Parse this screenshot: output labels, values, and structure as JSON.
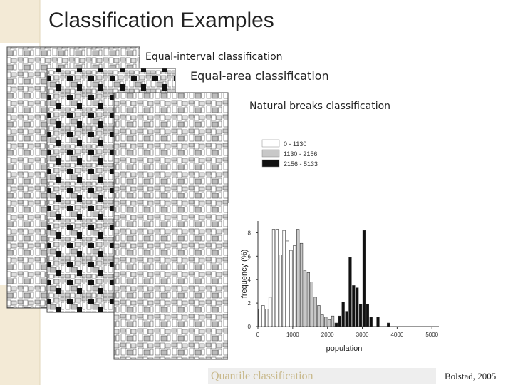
{
  "title": "Classification Examples",
  "maps": [
    "Equal-interval classification",
    "Equal-area classification",
    "Natural breaks classification",
    "Quantile classification"
  ],
  "credit": "Bolstad, 2005",
  "chart_data": {
    "type": "histogram",
    "xlabel": "population",
    "ylabel": "frequency (%)",
    "bins": [
      0,
      100,
      200,
      300,
      400,
      500,
      600,
      700,
      800,
      900,
      1000,
      1100,
      1200,
      1300,
      1400,
      1500,
      1600,
      1700,
      1800,
      1900,
      2000,
      2100,
      2200,
      2300,
      2400,
      2500,
      2600,
      2700,
      2800,
      2900,
      3000,
      3100,
      3200,
      3300,
      3400,
      3500,
      3600,
      3700,
      3800
    ],
    "values": [
      1.5,
      1.8,
      1.5,
      2.5,
      8.3,
      8.3,
      6.1,
      8.2,
      7.3,
      6.5,
      6.9,
      8.3,
      7.1,
      4.8,
      4.6,
      3.8,
      2.5,
      1.8,
      1.0,
      0.8,
      0.6,
      0.9,
      0.3,
      0.9,
      2.1,
      1.3,
      5.9,
      3.5,
      3.3,
      1.9,
      8.2,
      1.9,
      0.8,
      0,
      0.8,
      0,
      0,
      0.3
    ],
    "classes": [
      {
        "value": 1130,
        "label": "0 - 1130",
        "color": "#ffffff"
      },
      {
        "value": 2156,
        "label": "1130 - 2156",
        "color": "#c8c8c8"
      },
      {
        "value": 5133,
        "label": "2156 - 5133",
        "color": "#111111"
      }
    ],
    "xlim": [
      0,
      5200
    ],
    "ylim": [
      0,
      9
    ],
    "xticks": [
      0,
      1000,
      2000,
      3000,
      4000,
      5000
    ],
    "yticks": [
      0,
      2,
      4,
      6,
      8
    ]
  }
}
